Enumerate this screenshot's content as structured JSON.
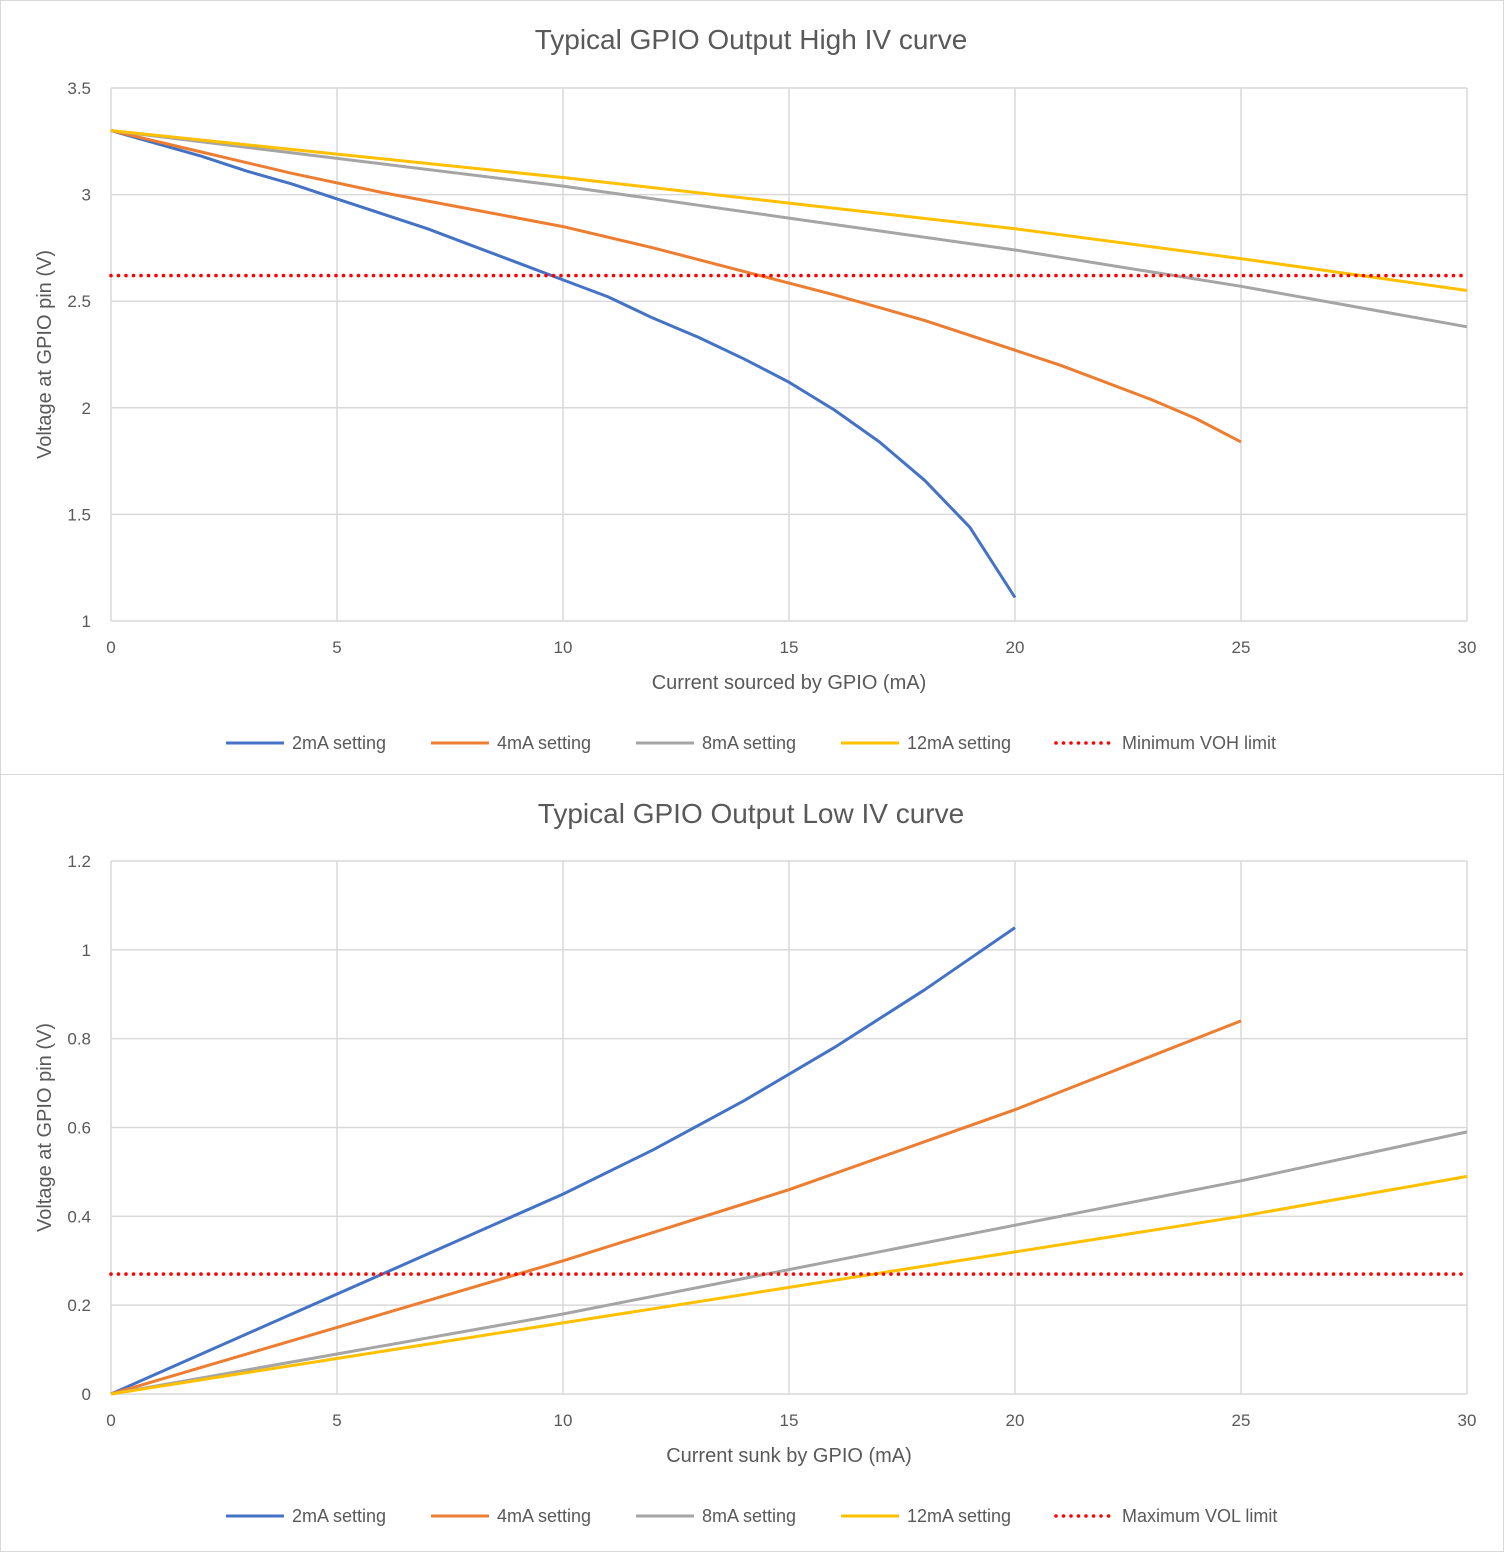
{
  "colors": {
    "s2mA": "#4472C4",
    "s4mA": "#ED7D31",
    "s8mA": "#A5A5A5",
    "s12mA": "#FFC000",
    "limit": "#FF0000"
  },
  "chart_data": [
    {
      "type": "line",
      "title": "Typical GPIO Output High IV curve",
      "xlabel": "Current sourced by GPIO (mA)",
      "ylabel": "Voltage at GPIO pin (V)",
      "xlim": [
        0,
        30
      ],
      "ylim": [
        1,
        3.5
      ],
      "xticks": [
        0,
        5,
        10,
        15,
        20,
        25,
        30
      ],
      "yticks": [
        1,
        1.5,
        2,
        2.5,
        3,
        3.5
      ],
      "xtick_labels": [
        "0",
        "5",
        "10",
        "15",
        "20",
        "25",
        "30"
      ],
      "ytick_labels": [
        "1",
        "1.5",
        "2",
        "2.5",
        "3",
        "3.5"
      ],
      "grid": true,
      "legend_position": "bottom",
      "series": [
        {
          "name": "2mA setting",
          "color_key": "s2mA",
          "style": "solid",
          "x": [
            0,
            1,
            2,
            3,
            4,
            5,
            6,
            7,
            8,
            9,
            10,
            11,
            12,
            13,
            14,
            15,
            16,
            17,
            18,
            19,
            20
          ],
          "y": [
            3.3,
            3.24,
            3.18,
            3.11,
            3.05,
            2.98,
            2.91,
            2.84,
            2.76,
            2.68,
            2.6,
            2.52,
            2.42,
            2.33,
            2.23,
            2.12,
            1.99,
            1.84,
            1.66,
            1.44,
            1.11
          ]
        },
        {
          "name": "4mA setting",
          "color_key": "s4mA",
          "style": "solid",
          "x": [
            0,
            2,
            4,
            6,
            8,
            10,
            12,
            14,
            16,
            18,
            20,
            21,
            22,
            23,
            24,
            25
          ],
          "y": [
            3.3,
            3.2,
            3.1,
            3.01,
            2.93,
            2.85,
            2.75,
            2.64,
            2.53,
            2.41,
            2.27,
            2.2,
            2.12,
            2.04,
            1.95,
            1.84
          ]
        },
        {
          "name": "8mA setting",
          "color_key": "s8mA",
          "style": "solid",
          "x": [
            0,
            5,
            10,
            15,
            20,
            25,
            30
          ],
          "y": [
            3.3,
            3.17,
            3.04,
            2.89,
            2.74,
            2.57,
            2.38
          ]
        },
        {
          "name": "12mA setting",
          "color_key": "s12mA",
          "style": "solid",
          "x": [
            0,
            5,
            10,
            15,
            20,
            25,
            30
          ],
          "y": [
            3.3,
            3.19,
            3.08,
            2.96,
            2.84,
            2.7,
            2.55
          ]
        },
        {
          "name": "Minimum VOH limit",
          "color_key": "limit",
          "style": "dotted",
          "x": [
            0,
            30
          ],
          "y": [
            2.62,
            2.62
          ]
        }
      ]
    },
    {
      "type": "line",
      "title": "Typical GPIO Output Low IV curve",
      "xlabel": "Current sunk by GPIO (mA)",
      "ylabel": "Voltage at GPIO pin (V)",
      "xlim": [
        0,
        30
      ],
      "ylim": [
        0,
        1.2
      ],
      "xticks": [
        0,
        5,
        10,
        15,
        20,
        25,
        30
      ],
      "yticks": [
        0,
        0.2,
        0.4,
        0.6,
        0.8,
        1,
        1.2
      ],
      "xtick_labels": [
        "0",
        "5",
        "10",
        "15",
        "20",
        "25",
        "30"
      ],
      "ytick_labels": [
        "0",
        "0.2",
        "0.4",
        "0.6",
        "0.8",
        "1",
        "1.2"
      ],
      "grid": true,
      "legend_position": "bottom",
      "series": [
        {
          "name": "2mA setting",
          "color_key": "s2mA",
          "style": "solid",
          "x": [
            0,
            2,
            4,
            6,
            8,
            10,
            12,
            14,
            16,
            18,
            19,
            20
          ],
          "y": [
            0,
            0.09,
            0.18,
            0.27,
            0.36,
            0.45,
            0.55,
            0.66,
            0.78,
            0.91,
            0.98,
            1.05
          ]
        },
        {
          "name": "4mA setting",
          "color_key": "s4mA",
          "style": "solid",
          "x": [
            0,
            5,
            10,
            15,
            20,
            25
          ],
          "y": [
            0,
            0.15,
            0.3,
            0.46,
            0.64,
            0.84
          ]
        },
        {
          "name": "8mA setting",
          "color_key": "s8mA",
          "style": "solid",
          "x": [
            0,
            5,
            10,
            15,
            20,
            25,
            30
          ],
          "y": [
            0,
            0.09,
            0.18,
            0.28,
            0.38,
            0.48,
            0.59
          ]
        },
        {
          "name": "12mA setting",
          "color_key": "s12mA",
          "style": "solid",
          "x": [
            0,
            5,
            10,
            15,
            20,
            25,
            30
          ],
          "y": [
            0,
            0.08,
            0.16,
            0.24,
            0.32,
            0.4,
            0.49
          ]
        },
        {
          "name": "Maximum VOL limit",
          "color_key": "limit",
          "style": "dotted",
          "x": [
            0,
            30
          ],
          "y": [
            0.27,
            0.27
          ]
        }
      ]
    }
  ]
}
